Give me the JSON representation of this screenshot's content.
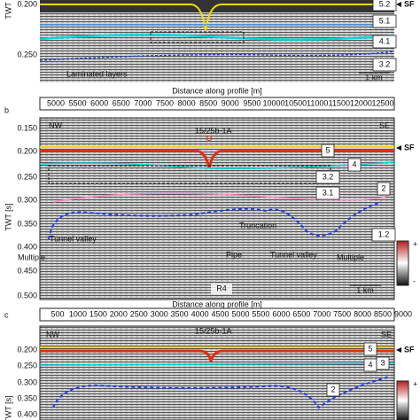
{
  "panels": [
    {
      "y_label": "TWT",
      "y_ticks": [
        "0.200",
        "0.250"
      ],
      "seafloor": "SF",
      "units": [
        "5.2",
        "5.1",
        "4.1",
        "3.2"
      ],
      "annotations": [
        "Laminated layers"
      ],
      "scale_bar": "1 km",
      "x_label": "Distance along profile [m]"
    },
    {
      "letter": "b",
      "x_ticks": [
        "5000",
        "5500",
        "6000",
        "6500",
        "7000",
        "7500",
        "8000",
        "8500",
        "9000",
        "9500",
        "10000",
        "10500",
        "11000",
        "11500",
        "12000",
        "12500"
      ],
      "y_label": "TWT [s]",
      "y_ticks": [
        "0.150",
        "0.200",
        "0.250",
        "0.300",
        "0.350",
        "0.400",
        "0.450",
        "0.500"
      ],
      "left_end": "NW",
      "right_end": "SE",
      "well": "15/25b-1A",
      "seafloor": "SF",
      "units": [
        "5",
        "4",
        "3.2",
        "3.1",
        "2",
        "1.2"
      ],
      "annotations": [
        "Truncation",
        "Tunnel valley",
        "Multiple",
        "Pipe",
        "Tunnel valley",
        "Multiple",
        "R4"
      ],
      "scale_bar": "1 km",
      "colorbar": [
        "+",
        "-"
      ],
      "x_label": "Distance along profile [m]"
    },
    {
      "letter": "c",
      "x_ticks": [
        "500",
        "1000",
        "1500",
        "2000",
        "2500",
        "3000",
        "3500",
        "4000",
        "4500",
        "5000",
        "5500",
        "6000",
        "6500",
        "7000",
        "7500",
        "8000",
        "8500",
        "9000"
      ],
      "y_label": "TWT [s]",
      "y_ticks": [
        "0.200",
        "0.250",
        "0.300",
        "0.350",
        "0.400"
      ],
      "left_end": "NW",
      "right_end": "SE",
      "well": "15/25b-1A",
      "seafloor": "SF",
      "units": [
        "5",
        "4",
        "3",
        "2"
      ],
      "colorbar": [
        "+"
      ]
    }
  ]
}
